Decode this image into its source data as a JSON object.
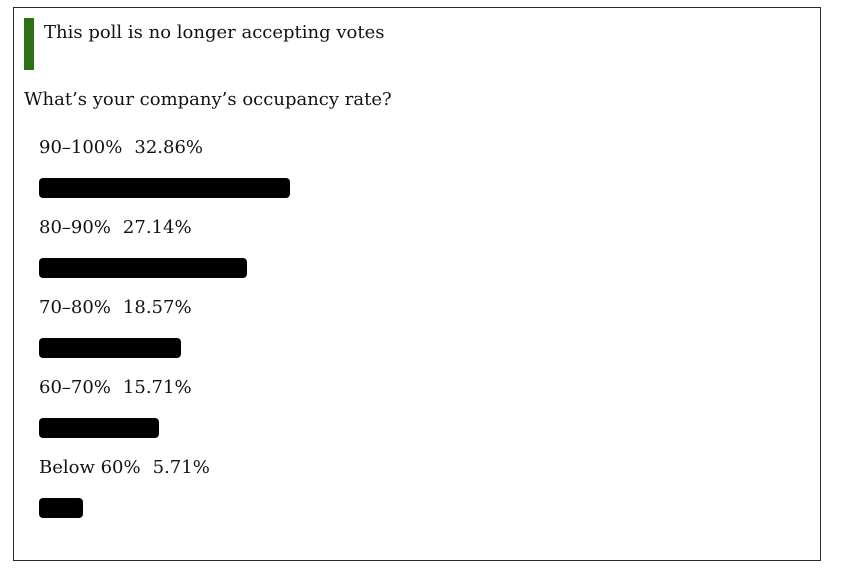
{
  "poll": {
    "closed_notice": "This poll is no longer accepting votes",
    "accent_color": "#2e7016",
    "bar_color": "#000000",
    "question": "What’s your company’s occupancy rate?",
    "options": [
      {
        "label": "90–100%",
        "percent_text": "32.86%",
        "percent": 32.86
      },
      {
        "label": "80–90%",
        "percent_text": "27.14%",
        "percent": 27.14
      },
      {
        "label": "70–80%",
        "percent_text": "18.57%",
        "percent": 18.57
      },
      {
        "label": "60–70%",
        "percent_text": "15.71%",
        "percent": 15.71
      },
      {
        "label": "Below 60%",
        "percent_text": "5.71%",
        "percent": 5.71
      }
    ]
  }
}
